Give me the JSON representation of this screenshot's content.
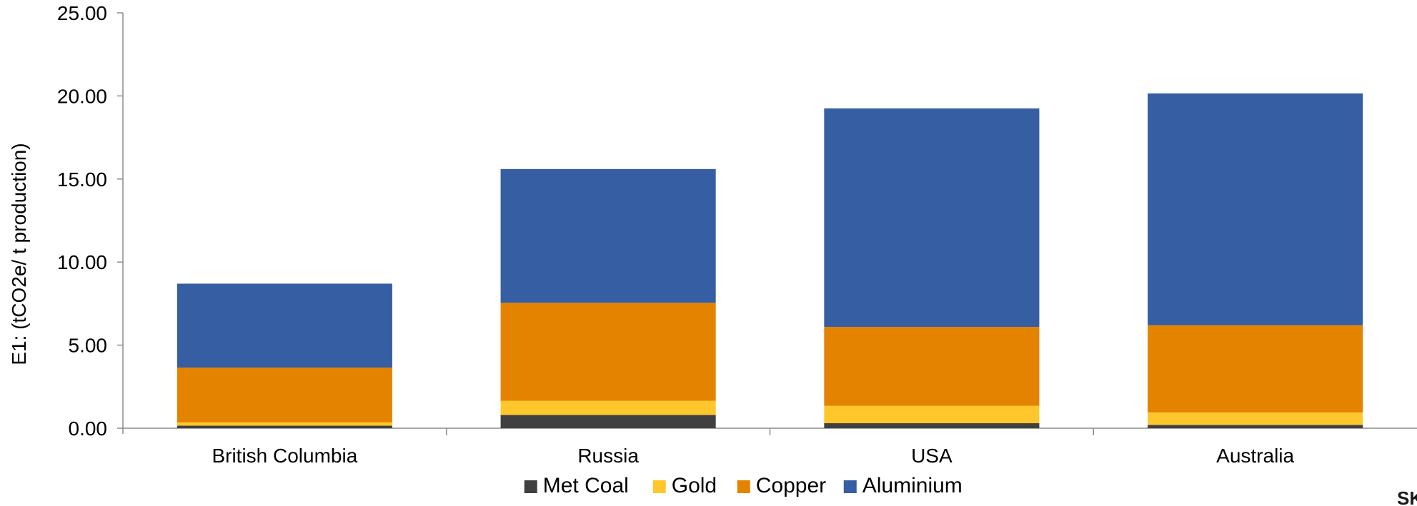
{
  "chart_data": {
    "type": "bar",
    "stacked": true,
    "title": "",
    "xlabel": "",
    "ylabel": "E1: (tCO2e/ t production)",
    "ylim": [
      0,
      25
    ],
    "yticks": [
      "0.00",
      "5.00",
      "10.00",
      "15.00",
      "20.00",
      "25.00"
    ],
    "grid": false,
    "legend_position": "bottom",
    "categories": [
      "British Columbia",
      "Russia",
      "USA",
      "Australia"
    ],
    "series": [
      {
        "name": "Met Coal",
        "color": "#404040",
        "values": [
          0.15,
          0.8,
          0.3,
          0.2
        ]
      },
      {
        "name": "Gold",
        "color": "#FFC72C",
        "values": [
          0.2,
          0.85,
          1.05,
          0.75
        ]
      },
      {
        "name": "Copper",
        "color": "#E38300",
        "values": [
          3.3,
          5.9,
          4.75,
          5.25
        ]
      },
      {
        "name": "Aluminium",
        "color": "#365EA2",
        "values": [
          5.05,
          8.05,
          13.15,
          13.95
        ]
      }
    ]
  },
  "brand_fragment": "SK"
}
